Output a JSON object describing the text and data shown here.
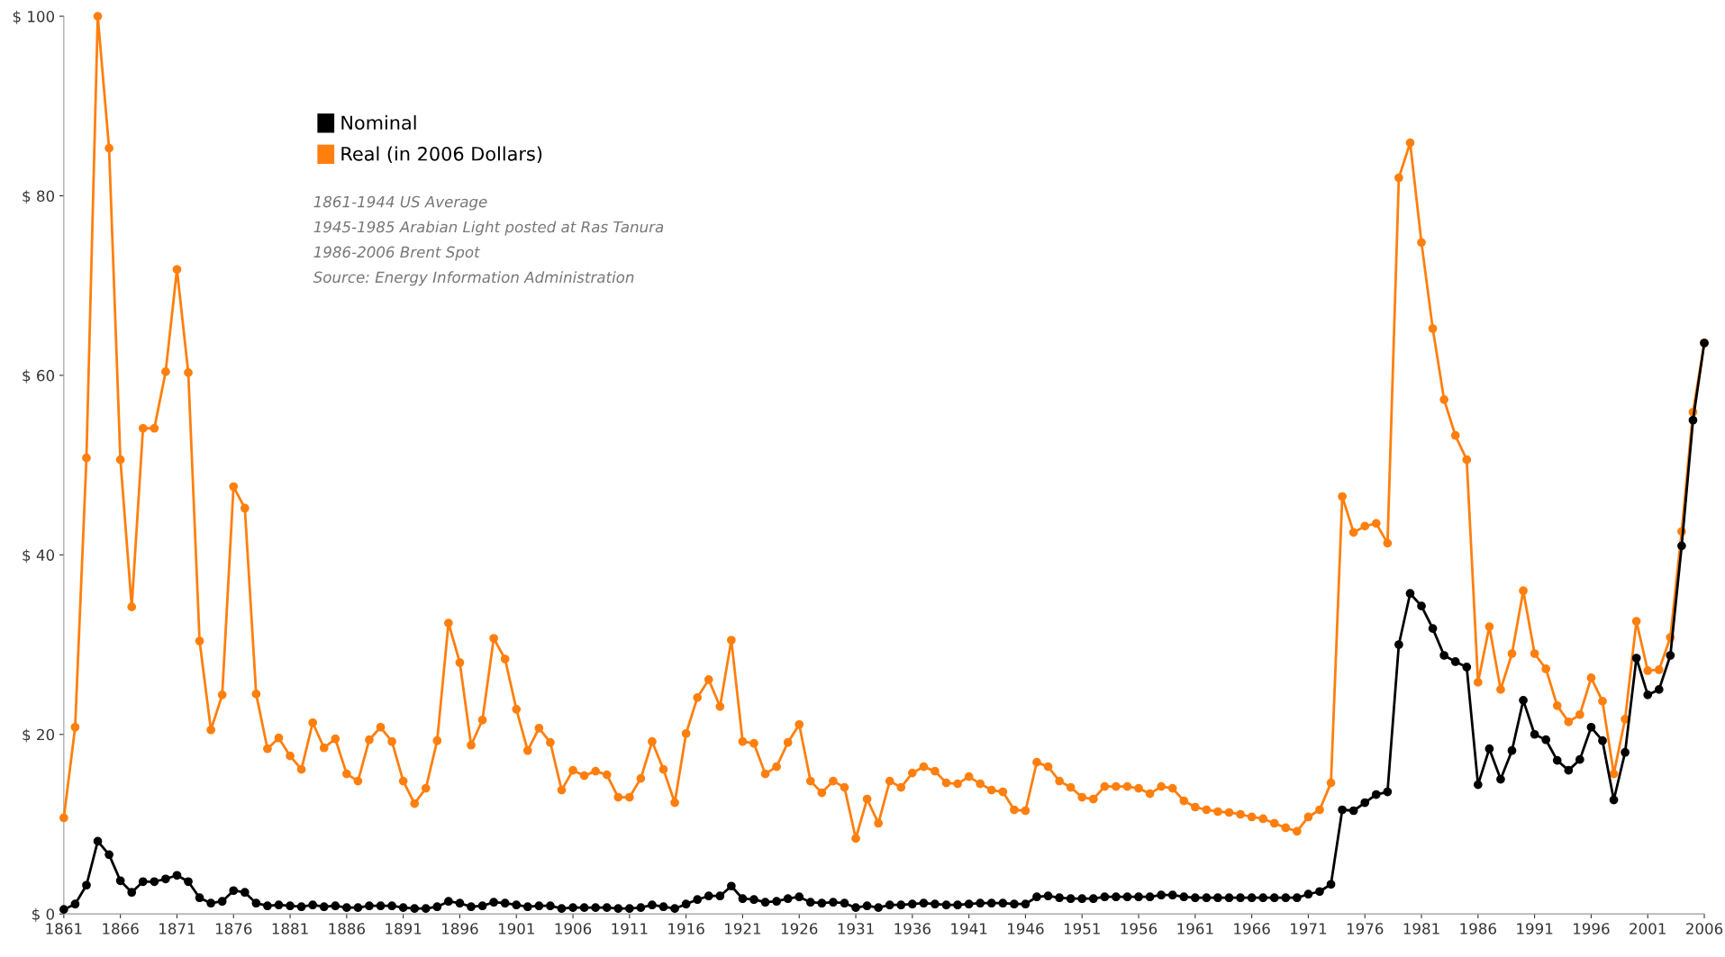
{
  "chart_data": {
    "type": "line",
    "x": [
      1861,
      1862,
      1863,
      1864,
      1865,
      1866,
      1867,
      1868,
      1869,
      1870,
      1871,
      1872,
      1873,
      1874,
      1875,
      1876,
      1877,
      1878,
      1879,
      1880,
      1881,
      1882,
      1883,
      1884,
      1885,
      1886,
      1887,
      1888,
      1889,
      1890,
      1891,
      1892,
      1893,
      1894,
      1895,
      1896,
      1897,
      1898,
      1899,
      1900,
      1901,
      1902,
      1903,
      1904,
      1905,
      1906,
      1907,
      1908,
      1909,
      1910,
      1911,
      1912,
      1913,
      1914,
      1915,
      1916,
      1917,
      1918,
      1919,
      1920,
      1921,
      1922,
      1923,
      1924,
      1925,
      1926,
      1927,
      1928,
      1929,
      1930,
      1931,
      1932,
      1933,
      1934,
      1935,
      1936,
      1937,
      1938,
      1939,
      1940,
      1941,
      1942,
      1943,
      1944,
      1945,
      1946,
      1947,
      1948,
      1949,
      1950,
      1951,
      1952,
      1953,
      1954,
      1955,
      1956,
      1957,
      1958,
      1959,
      1960,
      1961,
      1962,
      1963,
      1964,
      1965,
      1966,
      1967,
      1968,
      1969,
      1970,
      1971,
      1972,
      1973,
      1974,
      1975,
      1976,
      1977,
      1978,
      1979,
      1980,
      1981,
      1982,
      1983,
      1984,
      1985,
      1986,
      1987,
      1988,
      1989,
      1990,
      1991,
      1992,
      1993,
      1994,
      1995,
      1996,
      1997,
      1998,
      1999,
      2000,
      2001,
      2002,
      2003,
      2004,
      2005,
      2006
    ],
    "series": [
      {
        "name": "Nominal",
        "color": "#000000",
        "values": [
          0.5,
          1.1,
          3.2,
          8.1,
          6.6,
          3.7,
          2.4,
          3.6,
          3.6,
          3.9,
          4.3,
          3.6,
          1.8,
          1.2,
          1.4,
          2.6,
          2.4,
          1.2,
          0.9,
          1.0,
          0.9,
          0.8,
          1.0,
          0.8,
          0.9,
          0.7,
          0.7,
          0.9,
          0.9,
          0.9,
          0.7,
          0.6,
          0.6,
          0.8,
          1.4,
          1.2,
          0.8,
          0.9,
          1.3,
          1.2,
          1.0,
          0.8,
          0.9,
          0.9,
          0.6,
          0.7,
          0.7,
          0.7,
          0.7,
          0.6,
          0.6,
          0.7,
          1.0,
          0.8,
          0.6,
          1.1,
          1.6,
          2.0,
          2.0,
          3.1,
          1.7,
          1.6,
          1.3,
          1.4,
          1.7,
          1.9,
          1.3,
          1.2,
          1.3,
          1.2,
          0.7,
          0.9,
          0.7,
          1.0,
          1.0,
          1.1,
          1.2,
          1.1,
          1.0,
          1.0,
          1.1,
          1.2,
          1.2,
          1.2,
          1.1,
          1.1,
          1.9,
          2.0,
          1.8,
          1.7,
          1.7,
          1.7,
          1.9,
          1.9,
          1.9,
          1.9,
          1.9,
          2.1,
          2.1,
          1.9,
          1.8,
          1.8,
          1.8,
          1.8,
          1.8,
          1.8,
          1.8,
          1.8,
          1.8,
          1.8,
          2.2,
          2.5,
          3.3,
          11.6,
          11.5,
          12.4,
          13.3,
          13.6,
          30.0,
          35.7,
          34.3,
          31.8,
          28.8,
          28.1,
          27.5,
          14.4,
          18.4,
          15.0,
          18.2,
          23.8,
          20.0,
          19.4,
          17.1,
          16.0,
          17.2,
          20.8,
          19.3,
          12.7,
          18.0,
          28.5,
          24.4,
          25.0,
          28.8,
          41.0,
          55.0,
          63.6
        ]
      },
      {
        "name": "Real (in 2006 Dollars)",
        "color": "#ff7f0e",
        "values": [
          10.7,
          20.8,
          50.8,
          100.0,
          85.3,
          50.6,
          34.2,
          54.1,
          54.1,
          60.4,
          71.8,
          60.3,
          30.4,
          20.5,
          24.4,
          47.6,
          45.2,
          24.5,
          18.4,
          19.6,
          17.6,
          16.1,
          21.3,
          18.5,
          19.5,
          15.6,
          14.8,
          19.4,
          20.8,
          19.2,
          14.8,
          12.3,
          14.0,
          19.3,
          32.4,
          28.0,
          18.8,
          21.6,
          30.7,
          28.4,
          22.8,
          18.2,
          20.7,
          19.1,
          13.8,
          16.0,
          15.4,
          15.9,
          15.5,
          13.0,
          13.0,
          15.1,
          19.2,
          16.1,
          12.4,
          20.1,
          24.1,
          26.1,
          23.1,
          30.5,
          19.2,
          19.0,
          15.6,
          16.4,
          19.1,
          21.1,
          14.8,
          13.5,
          14.8,
          14.1,
          8.4,
          12.8,
          10.1,
          14.8,
          14.1,
          15.7,
          16.4,
          15.9,
          14.6,
          14.5,
          15.3,
          14.5,
          13.8,
          13.6,
          11.6,
          11.5,
          16.9,
          16.4,
          14.8,
          14.1,
          13.0,
          12.8,
          14.2,
          14.2,
          14.2,
          14.0,
          13.4,
          14.2,
          14.0,
          12.6,
          11.9,
          11.6,
          11.4,
          11.3,
          11.1,
          10.8,
          10.6,
          10.1,
          9.6,
          9.2,
          10.8,
          11.6,
          14.6,
          46.5,
          42.5,
          43.2,
          43.5,
          41.3,
          82.0,
          85.9,
          74.8,
          65.2,
          57.3,
          53.3,
          50.6,
          25.8,
          32.0,
          25.0,
          29.0,
          36.0,
          29.0,
          27.3,
          23.2,
          21.4,
          22.2,
          26.3,
          23.7,
          15.6,
          21.7,
          32.6,
          27.1,
          27.2,
          30.8,
          42.6,
          55.9,
          63.6
        ]
      }
    ],
    "xlim": [
      1861,
      2006
    ],
    "xticks": [
      1861,
      1866,
      1871,
      1876,
      1881,
      1886,
      1891,
      1896,
      1901,
      1906,
      1911,
      1916,
      1921,
      1926,
      1931,
      1936,
      1941,
      1946,
      1951,
      1956,
      1961,
      1966,
      1971,
      1976,
      1981,
      1986,
      1991,
      1996,
      2001,
      2006
    ],
    "ylim": [
      0,
      100
    ],
    "yticks": [
      {
        "value": 0,
        "label": "$ 0"
      },
      {
        "value": 20,
        "label": "$ 20"
      },
      {
        "value": 40,
        "label": "$ 40"
      },
      {
        "value": 60,
        "label": "$ 60"
      },
      {
        "value": 80,
        "label": "$ 80"
      },
      {
        "value": 100,
        "label": "$ 100"
      }
    ],
    "grid": false,
    "legend": "top left",
    "marker": "circle",
    "line_style": "solid",
    "annotations": [
      "1861-1944 US Average",
      "1945-1985 Arabian Light posted at Ras Tanura",
      "1986-2006 Brent Spot",
      "Source: Energy Information Administration"
    ]
  }
}
